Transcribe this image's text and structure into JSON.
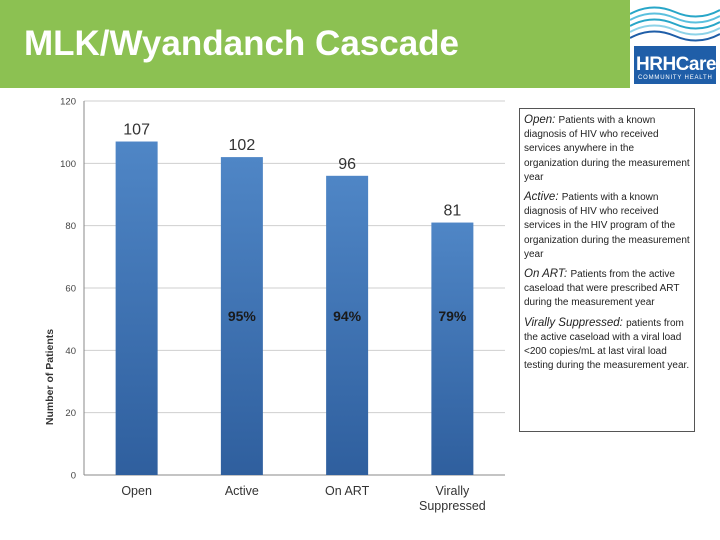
{
  "slide": {
    "title": "MLK/Wyandanch Cascade"
  },
  "logo": {
    "name": "HRHCare",
    "subtitle": "COMMUNITY HEALTH"
  },
  "chart_data": {
    "type": "bar",
    "title": "",
    "xlabel": "",
    "ylabel": "Number of Patients",
    "ylim": [
      0,
      120
    ],
    "yticks": [
      "0",
      "20",
      "40",
      "60",
      "80",
      "100",
      "120"
    ],
    "categories": [
      [
        "Open"
      ],
      [
        "Active"
      ],
      [
        "On ART"
      ],
      [
        "Virally",
        "Suppressed"
      ]
    ],
    "values": [
      107,
      102,
      96,
      81
    ],
    "value_labels": [
      "107",
      "102",
      "96",
      "81"
    ],
    "percent_labels": [
      "",
      "95%",
      "94%",
      "79%"
    ],
    "grid": true,
    "bar_color": "#4f86c6"
  },
  "definitions": [
    {
      "term": "Open:",
      "text": "Patients with a known diagnosis of HIV who received services anywhere in the organization during the measurement year"
    },
    {
      "term": "Active:",
      "text": "Patients with a known diagnosis of HIV who received services in the HIV program of the organization during the measurement year"
    },
    {
      "term": "On ART:",
      "text": "Patients from the active caseload that were prescribed ART during the measurement year"
    },
    {
      "term": "Virally Suppressed:",
      "text": "patients from the active caseload with a viral load <200 copies/mL at last viral load testing during the measurement year."
    }
  ]
}
